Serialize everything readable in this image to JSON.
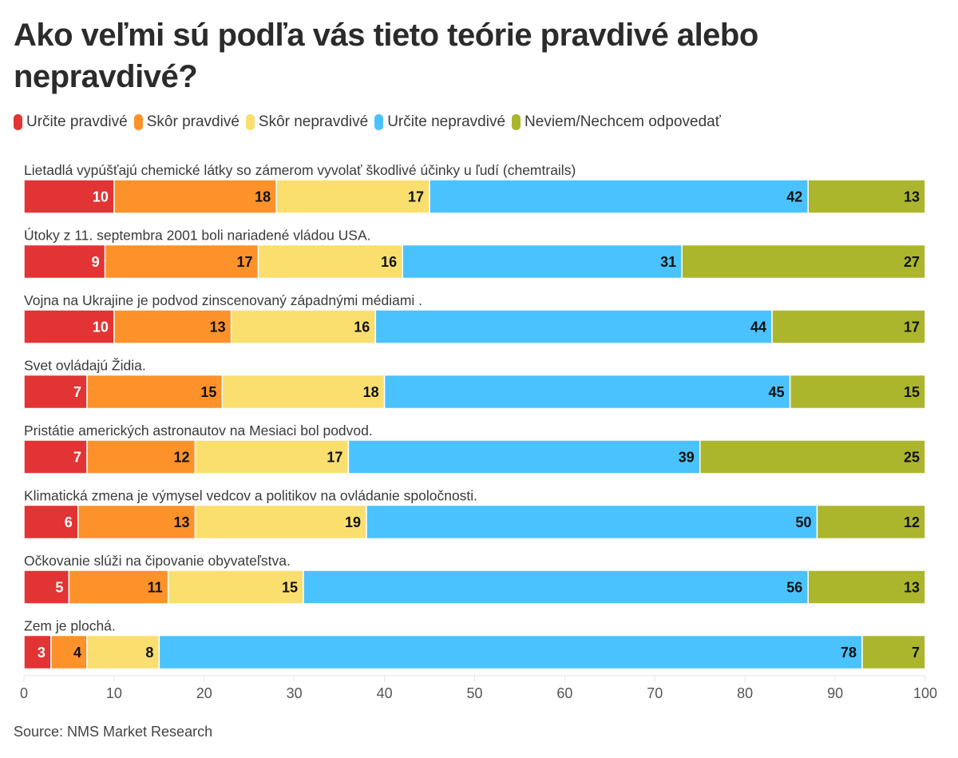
{
  "chart_data": {
    "type": "bar",
    "orientation": "horizontal",
    "stacked": true,
    "title": "Ako veľmi sú podľa vás tieto teórie pravdivé alebo nepravdivé?",
    "xlabel": "",
    "ylabel": "",
    "xlim": [
      0,
      100
    ],
    "xticks": [
      0,
      10,
      20,
      30,
      40,
      50,
      60,
      70,
      80,
      90,
      100
    ],
    "grid": false,
    "legend_position": "top-left",
    "source": "Source: NMS Market Research",
    "categories": [
      "Lietadlá vypúšťajú chemické látky so zámerom vyvolať škodlivé účinky u ľudí (chemtrails)",
      "Útoky z 11. septembra 2001 boli nariadené vládou USA.",
      "Vojna na Ukrajine je podvod zinscenovaný západnými médiami .",
      "Svet ovládajú Židia.",
      "Pristátie amerických astronautov na Mesiaci bol podvod.",
      "Klimatická zmena je výmysel vedcov a politikov na ovládanie spoločnosti.",
      "Očkovanie slúži na čipovanie obyvateľstva.",
      "Zem je plochá."
    ],
    "series": [
      {
        "name": "Určite pravdivé",
        "color": "#e23434",
        "label_color": "#ffffff",
        "values": [
          10,
          9,
          10,
          7,
          7,
          6,
          5,
          3
        ]
      },
      {
        "name": "Skôr pravdivé",
        "color": "#fd922b",
        "label_color": "#111111",
        "values": [
          18,
          17,
          13,
          15,
          12,
          13,
          11,
          4
        ]
      },
      {
        "name": "Skôr nepravdivé",
        "color": "#fadf6f",
        "label_color": "#111111",
        "values": [
          17,
          16,
          16,
          18,
          17,
          19,
          15,
          8
        ]
      },
      {
        "name": "Určite nepravdivé",
        "color": "#4ac2fd",
        "label_color": "#111111",
        "values": [
          42,
          31,
          44,
          45,
          39,
          50,
          56,
          78
        ]
      },
      {
        "name": "Neviem/Nechcem odpovedať",
        "color": "#abb62d",
        "label_color": "#111111",
        "values": [
          13,
          27,
          17,
          15,
          25,
          12,
          13,
          7
        ]
      }
    ]
  }
}
